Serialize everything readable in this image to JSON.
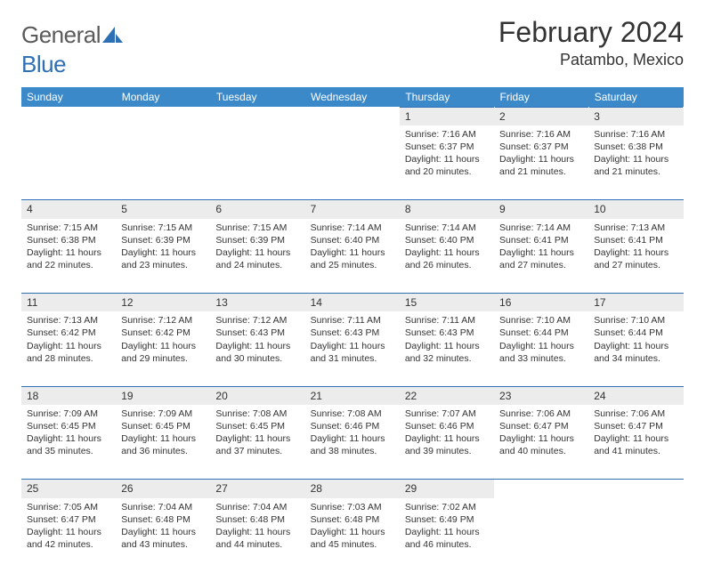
{
  "brand": {
    "general": "General",
    "blue": "Blue"
  },
  "title": "February 2024",
  "location": "Patambo, Mexico",
  "colors": {
    "header_bg": "#3b89c9",
    "header_text": "#ffffff",
    "daynum_bg": "#ececec",
    "rule": "#2f6fb3",
    "logo_gray": "#5a5a5a",
    "logo_blue": "#2f6fb3",
    "body_text": "#333333",
    "page_bg": "#ffffff"
  },
  "weekdays": [
    "Sunday",
    "Monday",
    "Tuesday",
    "Wednesday",
    "Thursday",
    "Friday",
    "Saturday"
  ],
  "labels": {
    "sunrise": "Sunrise:",
    "sunset": "Sunset:",
    "daylight": "Daylight:"
  },
  "weeks": [
    [
      null,
      null,
      null,
      null,
      {
        "n": "1",
        "sr": "7:16 AM",
        "ss": "6:37 PM",
        "dl": "11 hours and 20 minutes."
      },
      {
        "n": "2",
        "sr": "7:16 AM",
        "ss": "6:37 PM",
        "dl": "11 hours and 21 minutes."
      },
      {
        "n": "3",
        "sr": "7:16 AM",
        "ss": "6:38 PM",
        "dl": "11 hours and 21 minutes."
      }
    ],
    [
      {
        "n": "4",
        "sr": "7:15 AM",
        "ss": "6:38 PM",
        "dl": "11 hours and 22 minutes."
      },
      {
        "n": "5",
        "sr": "7:15 AM",
        "ss": "6:39 PM",
        "dl": "11 hours and 23 minutes."
      },
      {
        "n": "6",
        "sr": "7:15 AM",
        "ss": "6:39 PM",
        "dl": "11 hours and 24 minutes."
      },
      {
        "n": "7",
        "sr": "7:14 AM",
        "ss": "6:40 PM",
        "dl": "11 hours and 25 minutes."
      },
      {
        "n": "8",
        "sr": "7:14 AM",
        "ss": "6:40 PM",
        "dl": "11 hours and 26 minutes."
      },
      {
        "n": "9",
        "sr": "7:14 AM",
        "ss": "6:41 PM",
        "dl": "11 hours and 27 minutes."
      },
      {
        "n": "10",
        "sr": "7:13 AM",
        "ss": "6:41 PM",
        "dl": "11 hours and 27 minutes."
      }
    ],
    [
      {
        "n": "11",
        "sr": "7:13 AM",
        "ss": "6:42 PM",
        "dl": "11 hours and 28 minutes."
      },
      {
        "n": "12",
        "sr": "7:12 AM",
        "ss": "6:42 PM",
        "dl": "11 hours and 29 minutes."
      },
      {
        "n": "13",
        "sr": "7:12 AM",
        "ss": "6:43 PM",
        "dl": "11 hours and 30 minutes."
      },
      {
        "n": "14",
        "sr": "7:11 AM",
        "ss": "6:43 PM",
        "dl": "11 hours and 31 minutes."
      },
      {
        "n": "15",
        "sr": "7:11 AM",
        "ss": "6:43 PM",
        "dl": "11 hours and 32 minutes."
      },
      {
        "n": "16",
        "sr": "7:10 AM",
        "ss": "6:44 PM",
        "dl": "11 hours and 33 minutes."
      },
      {
        "n": "17",
        "sr": "7:10 AM",
        "ss": "6:44 PM",
        "dl": "11 hours and 34 minutes."
      }
    ],
    [
      {
        "n": "18",
        "sr": "7:09 AM",
        "ss": "6:45 PM",
        "dl": "11 hours and 35 minutes."
      },
      {
        "n": "19",
        "sr": "7:09 AM",
        "ss": "6:45 PM",
        "dl": "11 hours and 36 minutes."
      },
      {
        "n": "20",
        "sr": "7:08 AM",
        "ss": "6:45 PM",
        "dl": "11 hours and 37 minutes."
      },
      {
        "n": "21",
        "sr": "7:08 AM",
        "ss": "6:46 PM",
        "dl": "11 hours and 38 minutes."
      },
      {
        "n": "22",
        "sr": "7:07 AM",
        "ss": "6:46 PM",
        "dl": "11 hours and 39 minutes."
      },
      {
        "n": "23",
        "sr": "7:06 AM",
        "ss": "6:47 PM",
        "dl": "11 hours and 40 minutes."
      },
      {
        "n": "24",
        "sr": "7:06 AM",
        "ss": "6:47 PM",
        "dl": "11 hours and 41 minutes."
      }
    ],
    [
      {
        "n": "25",
        "sr": "7:05 AM",
        "ss": "6:47 PM",
        "dl": "11 hours and 42 minutes."
      },
      {
        "n": "26",
        "sr": "7:04 AM",
        "ss": "6:48 PM",
        "dl": "11 hours and 43 minutes."
      },
      {
        "n": "27",
        "sr": "7:04 AM",
        "ss": "6:48 PM",
        "dl": "11 hours and 44 minutes."
      },
      {
        "n": "28",
        "sr": "7:03 AM",
        "ss": "6:48 PM",
        "dl": "11 hours and 45 minutes."
      },
      {
        "n": "29",
        "sr": "7:02 AM",
        "ss": "6:49 PM",
        "dl": "11 hours and 46 minutes."
      },
      null,
      null
    ]
  ]
}
